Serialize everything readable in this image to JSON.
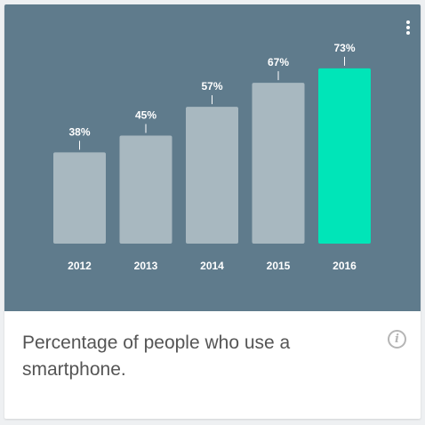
{
  "colors": {
    "panel_background": "#5f7b8c",
    "bar_default": "#a8b8c0",
    "bar_highlight": "#00e5b8",
    "label_text": "#ffffff"
  },
  "card": {
    "caption": "Percentage of people who use a smartphone.",
    "info_icon": "info-icon",
    "info_glyph": "i",
    "menu_icon": "more-vert-icon"
  },
  "chart_data": {
    "type": "bar",
    "categories": [
      "2012",
      "2013",
      "2014",
      "2015",
      "2016"
    ],
    "values": [
      38,
      45,
      57,
      67,
      73
    ],
    "value_labels": [
      "38%",
      "45%",
      "57%",
      "67%",
      "73%"
    ],
    "highlight_index": 4,
    "title": "",
    "xlabel": "",
    "ylabel": "",
    "ylim": [
      0,
      100
    ],
    "grid": false,
    "legend": "none"
  }
}
